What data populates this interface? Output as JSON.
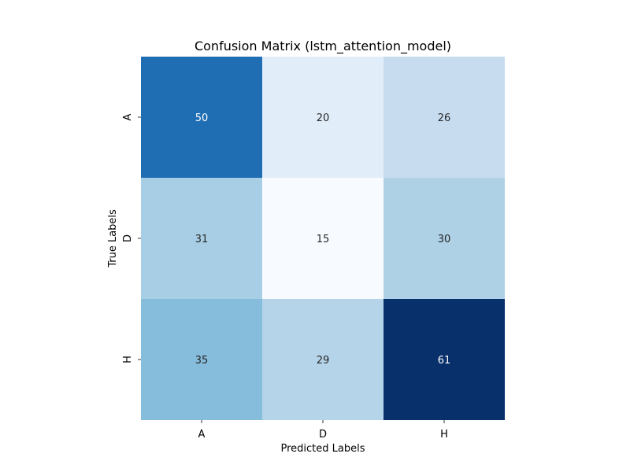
{
  "chart_data": {
    "type": "heatmap",
    "title": "Confusion Matrix (lstm_attention_model)",
    "xlabel": "Predicted Labels",
    "ylabel": "True Labels",
    "x_categories": [
      "A",
      "D",
      "H"
    ],
    "y_categories": [
      "A",
      "D",
      "H"
    ],
    "values": [
      [
        50,
        20,
        26
      ],
      [
        31,
        15,
        30
      ],
      [
        35,
        29,
        61
      ]
    ],
    "colormap": "Blues",
    "vmin": 15,
    "vmax": 61,
    "colorbar": false,
    "annotations": true
  }
}
